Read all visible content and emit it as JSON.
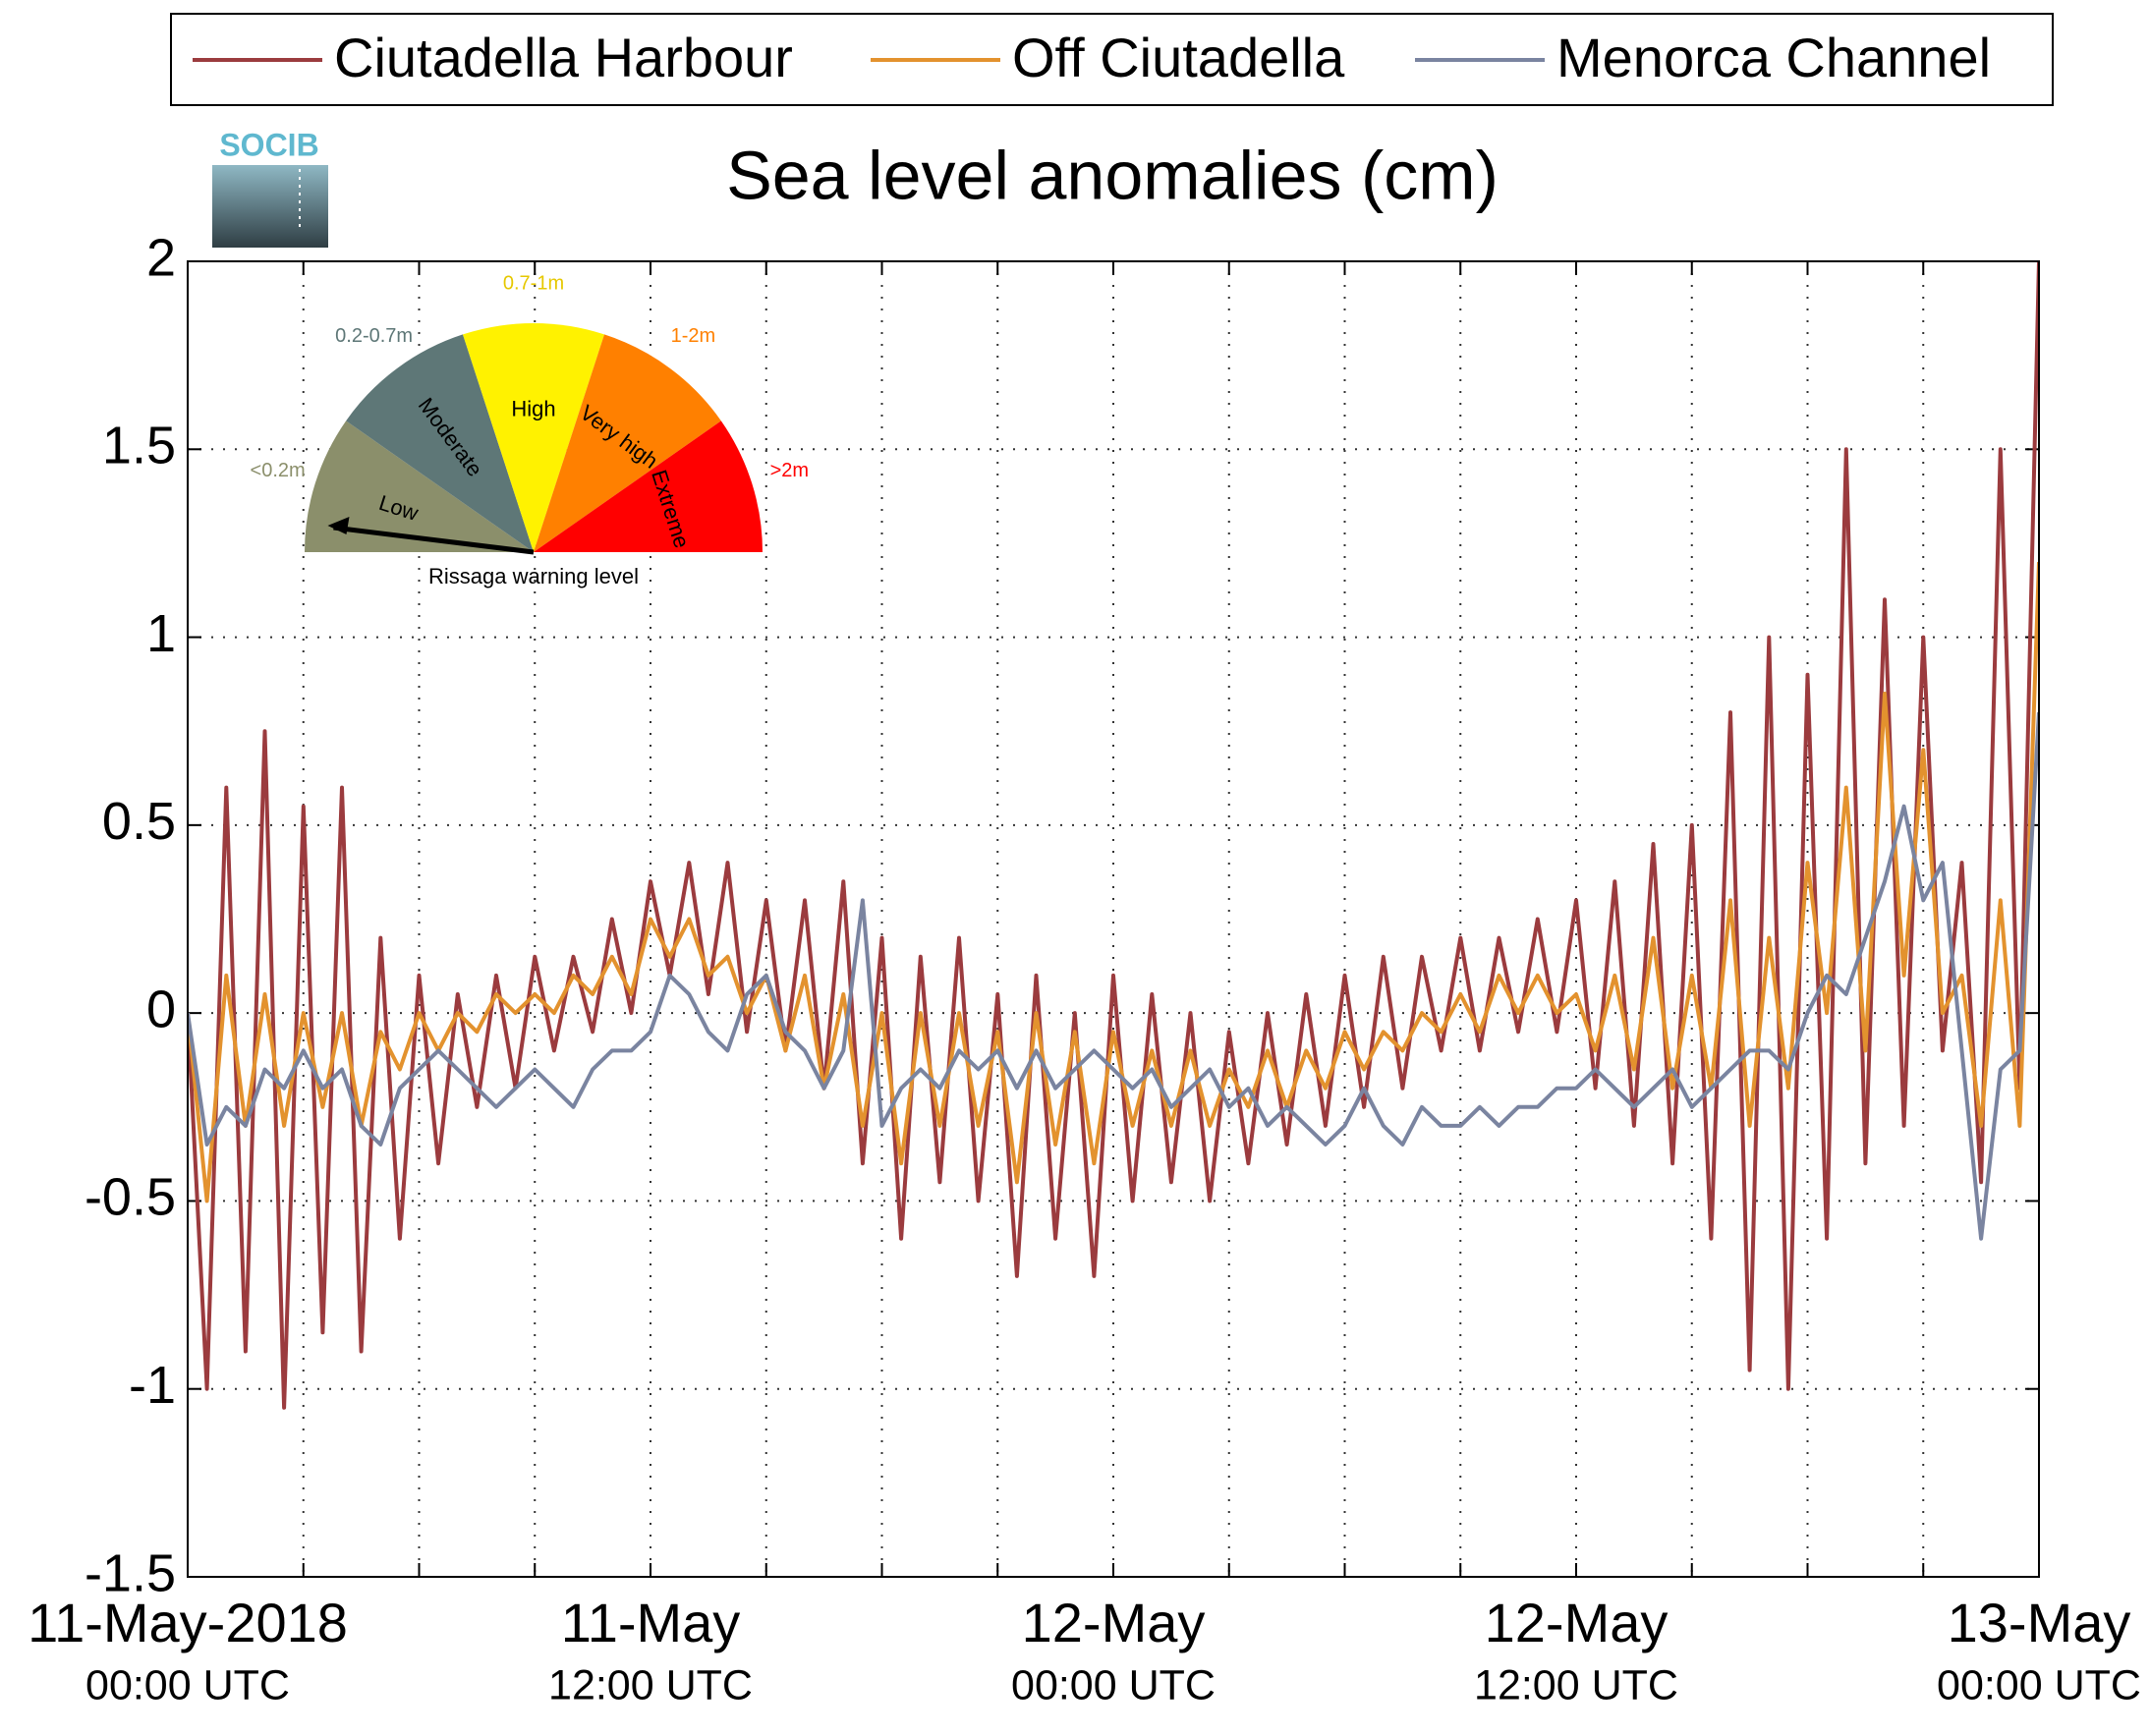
{
  "chart_data": {
    "type": "line",
    "title": "Sea level anomalies (cm)",
    "logo": "SOCIB",
    "legend": "top-outside",
    "grid": true,
    "x": [
      0,
      0.5,
      1,
      1.5,
      2,
      2.5,
      3,
      3.5,
      4,
      4.5,
      5,
      5.5,
      6,
      6.5,
      7,
      7.5,
      8,
      8.5,
      9,
      9.5,
      10,
      10.5,
      11,
      11.5,
      12,
      12.5,
      13,
      13.5,
      14,
      14.5,
      15,
      15.5,
      16,
      16.5,
      17,
      17.5,
      18,
      18.5,
      19,
      19.5,
      20,
      20.5,
      21,
      21.5,
      22,
      22.5,
      23,
      23.5,
      24,
      24.5,
      25,
      25.5,
      26,
      26.5,
      27,
      27.5,
      28,
      28.5,
      29,
      29.5,
      30,
      30.5,
      31,
      31.5,
      32,
      32.5,
      33,
      33.5,
      34,
      34.5,
      35,
      35.5,
      36,
      36.5,
      37,
      37.5,
      38,
      38.5,
      39,
      39.5,
      40,
      40.5,
      41,
      41.5,
      42,
      42.5,
      43,
      43.5,
      44,
      44.5,
      45,
      45.5,
      46,
      46.5,
      47,
      47.5,
      48
    ],
    "xlim": [
      0,
      48
    ],
    "xticks": [
      {
        "value": 0,
        "label": [
          "11-May-2018",
          "00:00 UTC"
        ]
      },
      {
        "value": 12,
        "label": [
          "11-May",
          "12:00 UTC"
        ]
      },
      {
        "value": 24,
        "label": [
          "12-May",
          "00:00 UTC"
        ]
      },
      {
        "value": 36,
        "label": [
          "12-May",
          "12:00 UTC"
        ]
      },
      {
        "value": 48,
        "label": [
          "13-May",
          "00:00 UTC"
        ]
      }
    ],
    "xgrid_ticks": [
      3,
      6,
      9,
      12,
      15,
      18,
      21,
      24,
      27,
      30,
      33,
      36,
      39,
      42,
      45
    ],
    "ylim": [
      -1.5,
      2
    ],
    "yticks": [
      -1.5,
      -1,
      -0.5,
      0,
      0.5,
      1,
      1.5,
      2
    ],
    "series": [
      {
        "name": "Ciutadella Harbour",
        "color": "#9b3b3e",
        "values": [
          0,
          -1.0,
          0.6,
          -0.9,
          0.75,
          -1.05,
          0.55,
          -0.85,
          0.6,
          -0.9,
          0.2,
          -0.6,
          0.1,
          -0.4,
          0.05,
          -0.25,
          0.1,
          -0.2,
          0.15,
          -0.1,
          0.15,
          -0.05,
          0.25,
          0.0,
          0.35,
          0.1,
          0.4,
          0.05,
          0.4,
          -0.05,
          0.3,
          -0.1,
          0.3,
          -0.2,
          0.35,
          -0.4,
          0.2,
          -0.6,
          0.15,
          -0.45,
          0.2,
          -0.5,
          0.05,
          -0.7,
          0.1,
          -0.6,
          0.0,
          -0.7,
          0.1,
          -0.5,
          0.05,
          -0.45,
          0.0,
          -0.5,
          -0.05,
          -0.4,
          0.0,
          -0.35,
          0.05,
          -0.3,
          0.1,
          -0.25,
          0.15,
          -0.2,
          0.15,
          -0.1,
          0.2,
          -0.1,
          0.2,
          -0.05,
          0.25,
          -0.05,
          0.3,
          -0.2,
          0.35,
          -0.3,
          0.45,
          -0.4,
          0.5,
          -0.6,
          0.8,
          -0.95,
          1.0,
          -1.0,
          0.9,
          -0.6,
          1.5,
          -0.4,
          1.1,
          -0.3,
          1.0,
          -0.1,
          0.4,
          -0.45,
          1.5,
          -0.2,
          2.0
        ]
      },
      {
        "name": "Off Ciutadella",
        "color": "#e3922e",
        "values": [
          0,
          -0.5,
          0.1,
          -0.3,
          0.05,
          -0.3,
          0.0,
          -0.25,
          0.0,
          -0.3,
          -0.05,
          -0.15,
          0.0,
          -0.1,
          0.0,
          -0.05,
          0.05,
          0.0,
          0.05,
          0.0,
          0.1,
          0.05,
          0.15,
          0.05,
          0.25,
          0.15,
          0.25,
          0.1,
          0.15,
          0.0,
          0.1,
          -0.1,
          0.1,
          -0.2,
          0.05,
          -0.3,
          0.0,
          -0.4,
          0.0,
          -0.3,
          0.0,
          -0.3,
          -0.05,
          -0.45,
          0.0,
          -0.35,
          -0.05,
          -0.4,
          -0.05,
          -0.3,
          -0.1,
          -0.3,
          -0.1,
          -0.3,
          -0.15,
          -0.25,
          -0.1,
          -0.25,
          -0.1,
          -0.2,
          -0.05,
          -0.15,
          -0.05,
          -0.1,
          0.0,
          -0.05,
          0.05,
          -0.05,
          0.1,
          0.0,
          0.1,
          0.0,
          0.05,
          -0.1,
          0.1,
          -0.15,
          0.2,
          -0.2,
          0.1,
          -0.2,
          0.3,
          -0.3,
          0.2,
          -0.2,
          0.4,
          0.0,
          0.6,
          -0.1,
          0.85,
          0.1,
          0.7,
          0.0,
          0.1,
          -0.3,
          0.3,
          -0.3,
          1.2
        ]
      },
      {
        "name": "Menorca Channel",
        "color": "#7a84a0",
        "values": [
          0,
          -0.35,
          -0.25,
          -0.3,
          -0.15,
          -0.2,
          -0.1,
          -0.2,
          -0.15,
          -0.3,
          -0.35,
          -0.2,
          -0.15,
          -0.1,
          -0.15,
          -0.2,
          -0.25,
          -0.2,
          -0.15,
          -0.2,
          -0.25,
          -0.15,
          -0.1,
          -0.1,
          -0.05,
          0.1,
          0.05,
          -0.05,
          -0.1,
          0.05,
          0.1,
          -0.05,
          -0.1,
          -0.2,
          -0.1,
          0.3,
          -0.3,
          -0.2,
          -0.15,
          -0.2,
          -0.1,
          -0.15,
          -0.1,
          -0.2,
          -0.1,
          -0.2,
          -0.15,
          -0.1,
          -0.15,
          -0.2,
          -0.15,
          -0.25,
          -0.2,
          -0.15,
          -0.25,
          -0.2,
          -0.3,
          -0.25,
          -0.3,
          -0.35,
          -0.3,
          -0.2,
          -0.3,
          -0.35,
          -0.25,
          -0.3,
          -0.3,
          -0.25,
          -0.3,
          -0.25,
          -0.25,
          -0.2,
          -0.2,
          -0.15,
          -0.2,
          -0.25,
          -0.2,
          -0.15,
          -0.25,
          -0.2,
          -0.15,
          -0.1,
          -0.1,
          -0.15,
          0.0,
          0.1,
          0.05,
          0.2,
          0.35,
          0.55,
          0.3,
          0.4,
          -0.1,
          -0.6,
          -0.15,
          -0.1,
          0.8
        ]
      }
    ],
    "gauge": {
      "caption": "Rissaga warning level",
      "sectors": [
        {
          "name": "Low",
          "range": "<0.2m",
          "color": "#8b8f6b"
        },
        {
          "name": "Moderate",
          "range": "0.2-0.7m",
          "color": "#5e7777"
        },
        {
          "name": "High",
          "range": "0.7-1m",
          "color": "#fff200"
        },
        {
          "name": "Very high",
          "range": "1-2m",
          "color": "#ff8000"
        },
        {
          "name": "Extreme",
          "range": ">2m",
          "color": "#ff0000"
        }
      ]
    }
  }
}
